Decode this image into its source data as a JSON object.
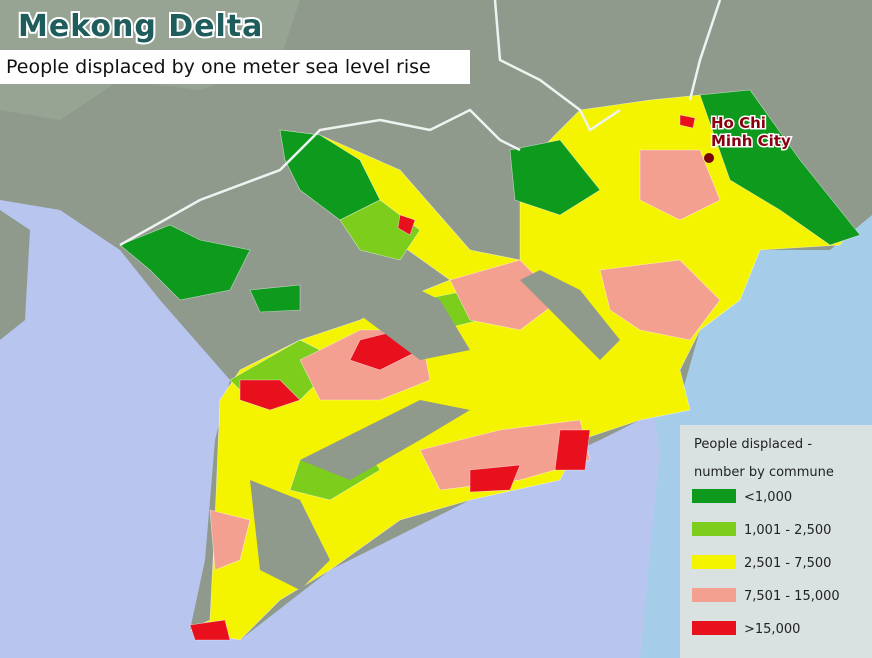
{
  "header": {
    "title": "Mekong Delta",
    "subtitle": "People displaced by one meter sea level rise"
  },
  "city": {
    "label_lines": [
      "Ho Chi",
      "Minh City"
    ]
  },
  "legend": {
    "title_lines": [
      "People displaced -",
      "number by commune"
    ],
    "items": [
      {
        "label": "<1,000",
        "color": "#0e9a1c"
      },
      {
        "label": "1,001 - 2,500",
        "color": "#7ccd1c"
      },
      {
        "label": "2,501 - 7,500",
        "color": "#f5f400"
      },
      {
        "label": "7,501 - 15,000",
        "color": "#f4a090"
      },
      {
        "label": ">15,000",
        "color": "#e8101c"
      }
    ]
  }
}
